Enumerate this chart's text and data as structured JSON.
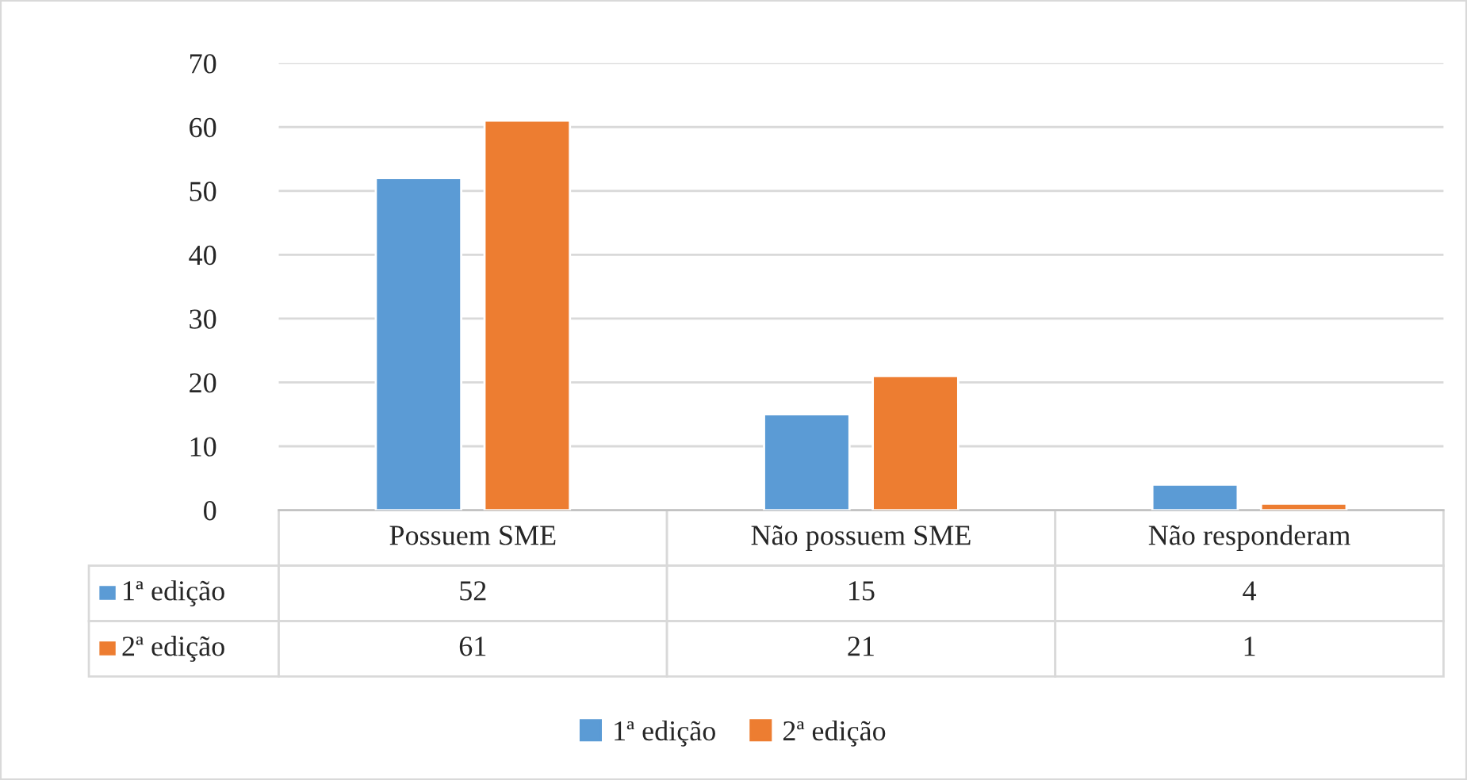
{
  "chart_data": {
    "type": "bar",
    "categories": [
      "Possuem SME",
      "Não possuem SME",
      "Não responderam"
    ],
    "series": [
      {
        "name": "1ª edição",
        "color": "#5b9bd5",
        "values": [
          52,
          15,
          4
        ]
      },
      {
        "name": "2ª edição",
        "color": "#ed7d31",
        "values": [
          61,
          21,
          1
        ]
      }
    ],
    "ylim": [
      0,
      70
    ],
    "yticks": [
      0,
      10,
      20,
      30,
      40,
      50,
      60,
      70
    ],
    "grid": "y",
    "data_labels": true,
    "legend": "bottom"
  }
}
